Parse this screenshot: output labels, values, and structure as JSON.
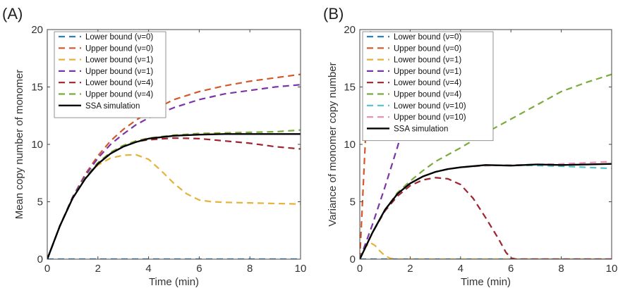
{
  "chart_data": [
    {
      "panel": "(A)",
      "type": "line",
      "xlabel": "Time (min)",
      "ylabel": "Mean copy number of monomer",
      "xlim": [
        0,
        10
      ],
      "ylim": [
        0,
        20
      ],
      "xticks": [
        "0",
        "2",
        "4",
        "6",
        "8",
        "10"
      ],
      "yticks": [
        "0",
        "5",
        "10",
        "15",
        "20"
      ],
      "legend_position": "top-left",
      "series": [
        {
          "name": "Lower bound  (ν=0)",
          "color": "#2a7fbf",
          "style": "dashed",
          "x": [
            0,
            10
          ],
          "y": [
            0,
            0
          ]
        },
        {
          "name": "Upper bound  (ν=0)",
          "color": "#d4562a",
          "style": "dashed",
          "x": [
            0,
            0.5,
            1,
            1.5,
            2,
            2.5,
            3,
            3.5,
            4,
            5,
            6,
            7,
            8,
            9,
            10
          ],
          "y": [
            0,
            2.9,
            5.4,
            7.4,
            9.0,
            10.3,
            11.3,
            12.1,
            12.8,
            13.9,
            14.6,
            15.1,
            15.5,
            15.8,
            16.1
          ]
        },
        {
          "name": "Lower bound  (ν=1)",
          "color": "#e6b23a",
          "style": "dashed",
          "x": [
            0,
            0.5,
            1,
            1.5,
            2,
            2.5,
            3,
            3.5,
            4,
            4.5,
            5,
            5.5,
            6,
            6.5,
            7,
            8,
            9,
            10
          ],
          "y": [
            0,
            2.9,
            5.3,
            7.1,
            8.2,
            8.8,
            9.05,
            9.1,
            8.7,
            7.7,
            6.6,
            5.7,
            5.15,
            5.0,
            4.95,
            4.9,
            4.85,
            4.8
          ]
        },
        {
          "name": "Upper bound  (ν=1)",
          "color": "#7a35a6",
          "style": "dashed",
          "x": [
            0,
            0.5,
            1,
            1.5,
            2,
            2.5,
            3,
            3.5,
            4,
            5,
            6,
            7,
            8,
            9,
            10
          ],
          "y": [
            0,
            2.9,
            5.4,
            7.3,
            8.8,
            10.0,
            10.9,
            11.7,
            12.3,
            13.2,
            13.9,
            14.4,
            14.7,
            15.0,
            15.2
          ]
        },
        {
          "name": "Lower bound  (ν=4)",
          "color": "#9c2530",
          "style": "dashed",
          "x": [
            0,
            0.5,
            1,
            1.5,
            2,
            2.5,
            3,
            3.5,
            4,
            5,
            6,
            7,
            8,
            9,
            10
          ],
          "y": [
            0,
            2.9,
            5.3,
            7.1,
            8.4,
            9.3,
            9.9,
            10.25,
            10.4,
            10.55,
            10.5,
            10.3,
            10.1,
            9.8,
            9.6
          ]
        },
        {
          "name": "Upper bound  (ν=4)",
          "color": "#7bab3c",
          "style": "dashed",
          "x": [
            0,
            0.5,
            1,
            1.5,
            2,
            2.5,
            3,
            3.5,
            4,
            5,
            6,
            7,
            8,
            9,
            10
          ],
          "y": [
            0,
            2.9,
            5.3,
            7.1,
            8.4,
            9.3,
            9.9,
            10.3,
            10.55,
            10.8,
            10.95,
            11.0,
            11.05,
            11.1,
            11.25
          ]
        },
        {
          "name": "SSA simulation",
          "color": "#000000",
          "style": "solid",
          "x": [
            0,
            0.5,
            1,
            1.5,
            2,
            2.5,
            3,
            3.5,
            4,
            5,
            6,
            7,
            8,
            9,
            10
          ],
          "y": [
            0,
            2.9,
            5.3,
            7.0,
            8.3,
            9.2,
            9.8,
            10.2,
            10.5,
            10.75,
            10.85,
            10.9,
            10.9,
            10.9,
            10.9
          ]
        }
      ]
    },
    {
      "panel": "(B)",
      "type": "line",
      "xlabel": "Time (min)",
      "ylabel": "Variance of monomer copy number",
      "xlim": [
        0,
        10
      ],
      "ylim": [
        0,
        20
      ],
      "xticks": [
        "0",
        "2",
        "4",
        "6",
        "8",
        "10"
      ],
      "yticks": [
        "0",
        "5",
        "10",
        "15",
        "20"
      ],
      "legend_position": "top-left",
      "series": [
        {
          "name": "Lower bound  (ν=0)",
          "color": "#2a7fbf",
          "style": "dashed",
          "x": [
            0,
            10
          ],
          "y": [
            0,
            0
          ]
        },
        {
          "name": "Upper bound  (ν=0)",
          "color": "#d4562a",
          "style": "dashed",
          "x": [
            0,
            0.15,
            0.3,
            0.45
          ],
          "y": [
            0,
            7,
            14,
            21
          ]
        },
        {
          "name": "Lower bound  (ν=1)",
          "color": "#e6b23a",
          "style": "dashed",
          "x": [
            0,
            0.2,
            0.4,
            0.6,
            0.8,
            1.0,
            1.2,
            1.5,
            2,
            10
          ],
          "y": [
            0,
            1.0,
            1.45,
            1.2,
            0.7,
            0.3,
            0.08,
            0,
            0,
            0
          ]
        },
        {
          "name": "Upper bound  (ν=1)",
          "color": "#7a35a6",
          "style": "dashed",
          "x": [
            0,
            0.5,
            1,
            1.5,
            2,
            2.5,
            2.7
          ],
          "y": [
            0,
            3.0,
            6.3,
            9.8,
            13.6,
            17.8,
            19.7
          ]
        },
        {
          "name": "Lower bound  (ν=4)",
          "color": "#9c2530",
          "style": "dashed",
          "x": [
            0,
            0.5,
            1,
            1.5,
            2,
            2.5,
            3,
            3.5,
            4,
            4.5,
            5,
            5.5,
            5.8,
            6.0,
            6.2,
            7,
            8,
            9,
            10
          ],
          "y": [
            0,
            2.3,
            4.2,
            5.5,
            6.4,
            6.9,
            7.1,
            7.0,
            6.5,
            5.3,
            3.6,
            1.8,
            0.6,
            0.1,
            0,
            0,
            0,
            0,
            0
          ]
        },
        {
          "name": "Upper bound  (ν=4)",
          "color": "#7bab3c",
          "style": "dashed",
          "x": [
            0,
            0.5,
            1,
            1.5,
            2,
            2.5,
            3,
            4,
            5,
            6,
            7,
            8,
            9,
            10
          ],
          "y": [
            0,
            2.3,
            4.3,
            5.8,
            6.8,
            7.7,
            8.5,
            9.7,
            11.0,
            12.2,
            13.4,
            14.6,
            15.4,
            16.1
          ]
        },
        {
          "name": "Lower bound  (ν=10)",
          "color": "#4fc4cc",
          "style": "dashed",
          "x": [
            0,
            0.5,
            1,
            1.5,
            2,
            2.5,
            3,
            3.5,
            4,
            5,
            6,
            7,
            8,
            9,
            10
          ],
          "y": [
            0,
            2.3,
            4.3,
            5.7,
            6.6,
            7.2,
            7.6,
            7.85,
            8.0,
            8.15,
            8.2,
            8.15,
            8.1,
            8.0,
            7.9
          ]
        },
        {
          "name": "Upper bound  (ν=10)",
          "color": "#ef8fb7",
          "style": "dashed",
          "x": [
            0,
            0.5,
            1,
            1.5,
            2,
            2.5,
            3,
            3.5,
            4,
            5,
            6,
            7,
            8,
            9,
            10
          ],
          "y": [
            0,
            2.3,
            4.3,
            5.7,
            6.6,
            7.2,
            7.6,
            7.85,
            8.0,
            8.15,
            8.2,
            8.25,
            8.3,
            8.4,
            8.5
          ]
        },
        {
          "name": "SSA simulation",
          "color": "#000000",
          "style": "solid",
          "x": [
            0,
            0.5,
            1,
            1.5,
            2,
            2.5,
            3,
            3.5,
            4,
            4.5,
            5,
            6,
            7,
            8,
            9,
            10
          ],
          "y": [
            0,
            2.3,
            4.3,
            5.7,
            6.6,
            7.2,
            7.6,
            7.85,
            8.0,
            8.1,
            8.2,
            8.15,
            8.25,
            8.2,
            8.25,
            8.3
          ]
        }
      ]
    }
  ]
}
